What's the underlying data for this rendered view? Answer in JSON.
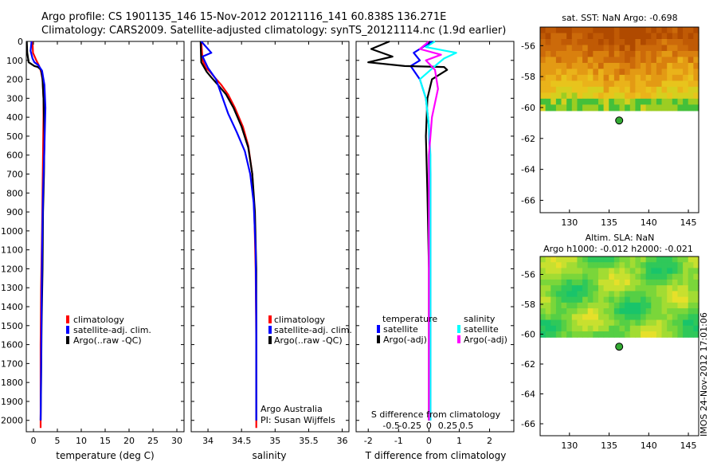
{
  "header": {
    "line1": "Argo profile: CS 1901135_146 15-Nov-2012 20121116_141 60.838S 136.271E",
    "line2": "Climatology: CARS2009. Satellite-adjusted climatology: synTS_20121114.nc (1.9d earlier)"
  },
  "colors": {
    "climatology": "#ff0000",
    "satellite": "#0000ff",
    "argo": "#000000",
    "t_satellite": "#0000ff",
    "t_argo": "#000000",
    "s_satellite": "#00ffff",
    "s_argo": "#ff00ff"
  },
  "watermark": "IMOS 24-Nov-2012 17:01:06",
  "chart_data": [
    {
      "type": "line",
      "id": "temperature",
      "xlabel": "temperature (deg C)",
      "ylabel": "",
      "xlim": [
        -1.5,
        31.5
      ],
      "ylim": [
        2060,
        0
      ],
      "xticks": [
        0,
        5,
        10,
        15,
        20,
        25,
        30
      ],
      "yticks": [
        0,
        100,
        200,
        300,
        400,
        500,
        600,
        700,
        800,
        900,
        1000,
        1100,
        1200,
        1300,
        1400,
        1500,
        1600,
        1700,
        1800,
        1900,
        2000
      ],
      "legend": {
        "position": "lower-center",
        "entries": [
          "climatology",
          "satellite-adj. clim.",
          "Argo(..raw -QC)"
        ]
      },
      "series": [
        {
          "name": "climatology",
          "color_key": "climatology",
          "x": [
            -0.2,
            -0.1,
            0.6,
            1.2,
            1.6,
            1.9,
            2.1,
            2.1,
            2.0,
            1.9,
            1.8,
            1.6,
            1.5,
            1.5,
            1.5
          ],
          "y": [
            0,
            60,
            100,
            130,
            160,
            200,
            300,
            400,
            600,
            800,
            1000,
            1300,
            1600,
            1900,
            2040
          ]
        },
        {
          "name": "Argo(..raw -QC)",
          "color_key": "argo",
          "x": [
            -1.4,
            -1.3,
            -1.0,
            0.2,
            0.9,
            1.6,
            1.9,
            2.1,
            2.2,
            2.3,
            2.2,
            2.0,
            1.9,
            1.7,
            1.6,
            1.5
          ],
          "y": [
            0,
            60,
            110,
            130,
            135,
            150,
            200,
            300,
            400,
            500,
            700,
            900,
            1200,
            1500,
            1800,
            2000
          ]
        },
        {
          "name": "satellite-adj. clim.",
          "color_key": "satellite",
          "x": [
            -0.4,
            -0.6,
            -0.2,
            0.2,
            1.0,
            1.8,
            2.3,
            2.5,
            2.3,
            2.0,
            1.8,
            1.7,
            1.6,
            1.5
          ],
          "y": [
            0,
            50,
            90,
            110,
            125,
            155,
            230,
            350,
            550,
            800,
            1100,
            1400,
            1700,
            2000
          ]
        }
      ]
    },
    {
      "type": "line",
      "id": "salinity",
      "xlabel": "salinity",
      "ylabel": "",
      "xlim": [
        33.75,
        36.1
      ],
      "ylim": [
        2060,
        0
      ],
      "xticks": [
        34,
        34.5,
        35,
        35.5,
        36
      ],
      "xtick_labels": [
        "34",
        "34.5",
        "35",
        "35.5",
        "36"
      ],
      "legend": {
        "position": "lower-center",
        "entries": [
          "climatology",
          "satellite-adj. clim.",
          "Argo(..raw -QC)"
        ]
      },
      "annotations": [
        "Argo Australia",
        "PI: Susan Wijffels"
      ],
      "series": [
        {
          "name": "climatology",
          "color_key": "climatology",
          "x": [
            33.9,
            33.92,
            33.97,
            34.03,
            34.1,
            34.2,
            34.3,
            34.4,
            34.52,
            34.6,
            34.66,
            34.69,
            34.71,
            34.72,
            34.72
          ],
          "y": [
            0,
            100,
            140,
            160,
            190,
            230,
            280,
            350,
            450,
            550,
            700,
            900,
            1200,
            1600,
            2040
          ]
        },
        {
          "name": "Argo(..raw -QC)",
          "color_key": "argo",
          "x": [
            33.89,
            33.9,
            33.98,
            34.05,
            34.15,
            34.27,
            34.38,
            34.5,
            34.6,
            34.66,
            34.7,
            34.72,
            34.72
          ],
          "y": [
            0,
            110,
            160,
            190,
            230,
            280,
            350,
            450,
            560,
            700,
            900,
            1200,
            2000
          ]
        },
        {
          "name": "satellite-adj. clim.",
          "color_key": "satellite",
          "x": [
            33.9,
            34.05,
            33.92,
            34.0,
            34.12,
            34.2,
            34.3,
            34.43,
            34.55,
            34.63,
            34.68,
            34.71,
            34.72,
            34.72
          ],
          "y": [
            0,
            60,
            80,
            140,
            200,
            280,
            380,
            480,
            580,
            700,
            850,
            1100,
            1500,
            2000
          ]
        }
      ]
    },
    {
      "type": "line",
      "id": "difference",
      "xlabel": "T difference from climatology",
      "xlabel_top": "S difference from climatology",
      "xlim": [
        -2.4,
        2.8
      ],
      "ylim": [
        2060,
        0
      ],
      "xticks": [
        -2,
        -1,
        0,
        1,
        2
      ],
      "s_xticks": [
        "-0.5",
        "-0.25",
        "0",
        "0.25",
        "0.5"
      ],
      "legend": {
        "position": "lower-center",
        "groups": [
          {
            "title": "temperature",
            "entries": [
              "satellite",
              "Argo(-adj)"
            ]
          },
          {
            "title": "salinity",
            "entries": [
              "satellite",
              "Argo(-adj)"
            ]
          }
        ]
      },
      "series": [
        {
          "name": "temperature satellite",
          "color_key": "t_satellite",
          "x": [
            0.1,
            -0.5,
            -0.3,
            -0.6,
            -0.3,
            -0.1,
            0.0,
            0.05,
            0.05,
            0.05,
            0.05
          ],
          "y": [
            0,
            60,
            100,
            130,
            200,
            300,
            450,
            700,
            1000,
            1500,
            2000
          ]
        },
        {
          "name": "temperature Argo(-adj)",
          "color_key": "t_argo",
          "x": [
            -1.3,
            -1.9,
            -1.2,
            -2.0,
            -0.8,
            0.5,
            0.6,
            0.1,
            -0.05,
            -0.1,
            -0.05,
            0.0,
            0.0,
            0.0
          ],
          "y": [
            0,
            40,
            80,
            110,
            130,
            135,
            150,
            200,
            300,
            500,
            800,
            1200,
            1600,
            2000
          ]
        },
        {
          "name": "salinity satellite",
          "color_key": "s_satellite",
          "x": [
            0.2,
            -0.1,
            0.9,
            0.5,
            0.2,
            -0.3,
            -0.1,
            0.0,
            0.05,
            0.05,
            0.05,
            0.05,
            0.05
          ],
          "y": [
            0,
            30,
            60,
            90,
            130,
            200,
            300,
            450,
            600,
            800,
            1000,
            1500,
            2000
          ]
        },
        {
          "name": "salinity Argo(-adj)",
          "color_key": "s_argo",
          "x": [
            0.0,
            -0.3,
            0.4,
            -0.1,
            0.2,
            0.3,
            0.1,
            0.0,
            0.0,
            0.0
          ],
          "y": [
            0,
            40,
            70,
            100,
            150,
            250,
            400,
            600,
            1000,
            2000
          ]
        }
      ]
    },
    {
      "type": "heatmap",
      "id": "sst-map",
      "title": "sat. SST: NaN Argo: -0.698",
      "xlim": [
        126.3,
        146.3
      ],
      "ylim": [
        -66.8,
        -54.8
      ],
      "xticks": [
        130,
        135,
        140,
        145
      ],
      "yticks": [
        -56,
        -58,
        -60,
        -62,
        -64,
        -66
      ],
      "data_extent_lat": [
        -60.2,
        -54.8
      ],
      "marker": {
        "lon": 136.271,
        "lat": -60.838
      }
    },
    {
      "type": "heatmap",
      "id": "sla-map",
      "title": "Altim. SLA: NaN",
      "subtitle": "Argo h1000: -0.012 h2000: -0.021",
      "xlim": [
        126.3,
        146.3
      ],
      "ylim": [
        -66.8,
        -54.8
      ],
      "xticks": [
        130,
        135,
        140,
        145
      ],
      "yticks": [
        -56,
        -58,
        -60,
        -62,
        -64,
        -66
      ],
      "data_extent_lat": [
        -60.2,
        -54.8
      ],
      "marker": {
        "lon": 136.271,
        "lat": -60.838
      }
    }
  ]
}
